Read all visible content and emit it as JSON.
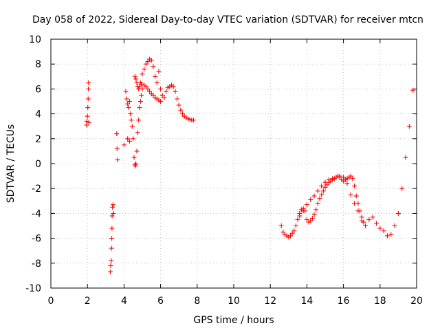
{
  "chart_data": {
    "type": "scatter",
    "title": "Day 058 of 2022, Sidereal Day-to-day VTEC variation (SDTVAR) for receiver mtcn",
    "xlabel": "GPS time / hours",
    "ylabel": "SDTVAR / TECUs",
    "xlim": [
      0,
      20
    ],
    "ylim": [
      -10,
      10
    ],
    "xticks": [
      "0",
      "2",
      "4",
      "6",
      "8",
      "10",
      "12",
      "14",
      "16",
      "18",
      "20"
    ],
    "yticks": [
      "-10",
      "-8",
      "-6",
      "-4",
      "-2",
      "0",
      "2",
      "4",
      "6",
      "8",
      "10"
    ],
    "grid": true,
    "marker": "+",
    "color": "#ff0000",
    "series": [
      {
        "name": "SDTVAR",
        "x": [
          1.95,
          1.97,
          2.0,
          2.02,
          2.04,
          2.05,
          2.06,
          2.08,
          3.25,
          3.27,
          3.3,
          3.32,
          3.33,
          3.34,
          3.35,
          3.37,
          3.4,
          3.42,
          3.6,
          3.62,
          3.65,
          4.0,
          4.2,
          4.3,
          4.1,
          4.15,
          4.2,
          4.25,
          4.3,
          4.35,
          4.4,
          4.45,
          4.5,
          4.55,
          4.6,
          4.62,
          4.65,
          4.7,
          4.75,
          4.8,
          4.85,
          4.9,
          4.95,
          5.0,
          4.6,
          4.65,
          4.7,
          4.75,
          4.8,
          4.85,
          4.9,
          4.95,
          5.0,
          5.1,
          5.2,
          5.3,
          5.4,
          5.5,
          5.6,
          5.7,
          5.8,
          5.9,
          6.0,
          5.0,
          5.1,
          5.2,
          5.3,
          5.4,
          5.5,
          5.6,
          5.7,
          5.8,
          5.9,
          6.0,
          6.1,
          6.2,
          6.3,
          6.4,
          6.5,
          6.6,
          6.7,
          6.8,
          6.9,
          7.0,
          7.1,
          7.2,
          7.3,
          7.4,
          7.5,
          7.6,
          7.7,
          7.8,
          12.6,
          12.7,
          12.8,
          12.9,
          13.0,
          13.1,
          13.2,
          13.3,
          13.4,
          13.5,
          13.6,
          13.7,
          13.8,
          13.9,
          14.0,
          14.1,
          14.2,
          14.3,
          14.4,
          14.5,
          14.6,
          14.7,
          14.8,
          14.9,
          15.0,
          15.1,
          15.2,
          15.3,
          15.4,
          15.5,
          15.6,
          15.7,
          15.8,
          15.9,
          16.0,
          16.1,
          16.2,
          16.3,
          16.4,
          16.5,
          16.6,
          16.7,
          16.8,
          16.9,
          17.0,
          17.1,
          13.6,
          13.8,
          14.0,
          14.2,
          14.4,
          14.6,
          14.8,
          15.0,
          15.2,
          15.4,
          15.6,
          15.8,
          16.0,
          16.2,
          16.4,
          16.6,
          16.8,
          17.0,
          17.2,
          17.4,
          17.6,
          17.8,
          18.0,
          18.2,
          18.4,
          18.6,
          18.8,
          19.0,
          19.2,
          19.4,
          19.6,
          19.8
        ],
        "y": [
          3.1,
          3.4,
          3.8,
          4.5,
          5.2,
          6.0,
          6.5,
          3.3,
          -8.7,
          -8.2,
          -7.8,
          -6.8,
          -6.0,
          -5.2,
          -4.2,
          -3.5,
          -3.3,
          -4.0,
          2.4,
          1.2,
          0.3,
          1.5,
          2.0,
          1.8,
          5.8,
          5.2,
          4.8,
          4.5,
          5.0,
          4.0,
          3.5,
          3.0,
          2.0,
          0.5,
          -0.1,
          -0.2,
          0.0,
          1.0,
          2.5,
          3.5,
          4.5,
          5.0,
          5.5,
          6.0,
          7.0,
          6.8,
          6.5,
          6.2,
          6.0,
          6.2,
          6.5,
          6.4,
          6.0,
          6.3,
          6.2,
          6.0,
          5.8,
          5.6,
          5.5,
          5.3,
          5.2,
          5.1,
          5.0,
          7.2,
          7.6,
          8.0,
          8.2,
          8.4,
          8.3,
          7.8,
          7.0,
          6.5,
          7.4,
          6.0,
          5.5,
          5.3,
          5.8,
          6.1,
          6.2,
          6.3,
          6.2,
          5.8,
          5.2,
          4.7,
          4.3,
          4.0,
          3.8,
          3.7,
          3.6,
          3.55,
          3.5,
          3.5,
          -5.0,
          -5.5,
          -5.7,
          -5.8,
          -5.9,
          -5.8,
          -5.6,
          -5.4,
          -5.0,
          -4.5,
          -4.0,
          -3.7,
          -3.6,
          -3.8,
          -4.5,
          -4.7,
          -4.6,
          -4.4,
          -4.1,
          -3.7,
          -3.2,
          -2.8,
          -2.5,
          -2.2,
          -1.9,
          -1.7,
          -1.5,
          -1.4,
          -1.3,
          -1.2,
          -1.1,
          -1.0,
          -1.1,
          -1.3,
          -1.4,
          -1.3,
          -1.2,
          -1.1,
          -1.0,
          -1.2,
          -1.8,
          -2.6,
          -3.2,
          -3.8,
          -4.3,
          -4.7,
          -4.2,
          -3.8,
          -3.3,
          -2.9,
          -2.6,
          -2.2,
          -1.8,
          -1.5,
          -1.3,
          -1.2,
          -1.1,
          -1.0,
          -1.1,
          -1.6,
          -2.5,
          -3.2,
          -3.8,
          -4.6,
          -5.0,
          -4.5,
          -4.3,
          -4.8,
          -5.2,
          -5.4,
          -5.8,
          -5.7,
          -5.0,
          -4.0,
          -2.0,
          0.5,
          3.0,
          5.9
        ]
      }
    ]
  }
}
